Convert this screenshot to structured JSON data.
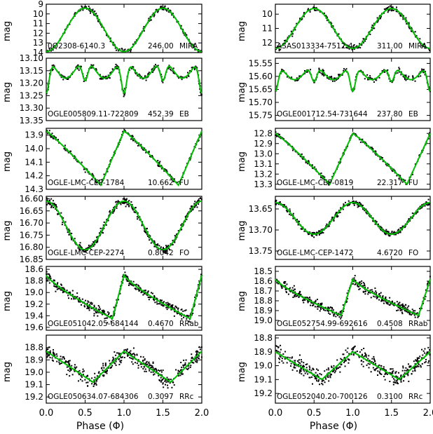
{
  "figure": {
    "xlabel": "Phase (Φ)",
    "ylabel": "mag",
    "x_ticks": [
      "0.0",
      "0.5",
      "1.0",
      "1.5",
      "2.0"
    ]
  },
  "chart_data": [
    {
      "type": "scatter",
      "column": "left",
      "row": 0,
      "title": "0Q2308-6140.3",
      "period": "246.00",
      "class": "MIRA",
      "ylim": [
        9.0,
        14.0
      ],
      "yticks": [
        9,
        10,
        11,
        12,
        13,
        14
      ],
      "ytick_labels": [
        "9",
        "10",
        "11",
        "12",
        "13",
        "14"
      ],
      "x": [
        0.0,
        0.5,
        1.0,
        1.5,
        2.0
      ],
      "y": [
        13.2,
        9.4,
        13.2,
        9.4,
        13.2
      ],
      "fit": {
        "min": 9.4,
        "max": 13.9,
        "shape": "mira",
        "phase0": 0.5
      },
      "scatter": 0.25,
      "series": [
        {
          "values": []
        }
      ]
    },
    {
      "type": "scatter",
      "column": "left",
      "row": 1,
      "title": "OGLE005809.11-722809",
      "period": "452.39",
      "class": "EB",
      "ylim": [
        13.1,
        13.35
      ],
      "yticks": [
        13.1,
        13.15,
        13.2,
        13.25,
        13.3,
        13.35
      ],
      "ytick_labels": [
        "13.10",
        "13.15",
        "13.20",
        "13.25",
        "13.30",
        "13.35"
      ],
      "x": [
        0.0,
        0.25,
        0.5,
        0.75,
        1.0
      ],
      "y": [
        13.3,
        13.12,
        13.24,
        13.12,
        13.31
      ],
      "fit": {
        "min": 13.11,
        "max": 13.31,
        "shape": "eb",
        "phase0": 0.0
      },
      "scatter": 0.012,
      "series": [
        {
          "values": []
        }
      ]
    },
    {
      "type": "scatter",
      "column": "left",
      "row": 2,
      "title": "OGLE-LMC-CEP-1784",
      "period": "10.662",
      "class": "FU",
      "ylim": [
        13.85,
        14.3
      ],
      "yticks": [
        13.9,
        14.0,
        14.1,
        14.2,
        14.3
      ],
      "ytick_labels": [
        "13.9",
        "14.0",
        "14.1",
        "14.2",
        "14.3"
      ],
      "x": [
        0.0,
        0.65,
        1.0
      ],
      "y": [
        13.88,
        14.25,
        13.88
      ],
      "fit": {
        "min": 13.87,
        "max": 14.27,
        "shape": "cep",
        "phase0": 0.0
      },
      "scatter": 0.018,
      "series": [
        {
          "values": []
        }
      ]
    },
    {
      "type": "scatter",
      "column": "left",
      "row": 3,
      "title": "OGLE-LMC-CEP-2274",
      "period": "0.8042",
      "class": "FO",
      "ylim": [
        16.59,
        16.85
      ],
      "yticks": [
        16.6,
        16.65,
        16.7,
        16.75,
        16.8,
        16.85
      ],
      "ytick_labels": [
        "16.60",
        "16.65",
        "16.70",
        "16.75",
        "16.80",
        "16.85"
      ],
      "x": [
        0.0,
        0.5,
        1.0
      ],
      "y": [
        16.63,
        16.8,
        16.63
      ],
      "fit": {
        "min": 16.61,
        "max": 16.81,
        "shape": "sine",
        "phase0": 0.0
      },
      "scatter": 0.015,
      "series": [
        {
          "values": []
        }
      ]
    },
    {
      "type": "scatter",
      "column": "left",
      "row": 4,
      "title": "OGLE051042.05-684144",
      "period": "0.4670",
      "class": "RRab",
      "ylim": [
        18.55,
        19.65
      ],
      "yticks": [
        18.6,
        18.8,
        19.0,
        19.2,
        19.4,
        19.6
      ],
      "ytick_labels": [
        "18.6",
        "18.8",
        "19.0",
        "19.2",
        "19.4",
        "19.6"
      ],
      "x": [
        0.0,
        0.85,
        1.0
      ],
      "y": [
        18.75,
        19.35,
        18.68
      ],
      "fit": {
        "min": 18.7,
        "max": 19.45,
        "shape": "rrab",
        "phase0": 0.0
      },
      "scatter": 0.08,
      "series": [
        {
          "values": []
        }
      ]
    },
    {
      "type": "scatter",
      "column": "left",
      "row": 5,
      "title": "OGLE050634.07-684306",
      "period": "0.3097",
      "class": "RRc",
      "ylim": [
        18.7,
        19.25
      ],
      "yticks": [
        18.8,
        18.9,
        19.0,
        19.1,
        19.2
      ],
      "ytick_labels": [
        "18.8",
        "18.9",
        "19.0",
        "19.1",
        "19.2"
      ],
      "x": [
        0.0,
        0.6,
        1.0
      ],
      "y": [
        18.82,
        19.08,
        18.85
      ],
      "fit": {
        "min": 18.83,
        "max": 19.08,
        "shape": "rrc",
        "phase0": 0.0
      },
      "scatter": 0.06,
      "series": [
        {
          "values": []
        }
      ]
    },
    {
      "type": "scatter",
      "column": "right",
      "row": 0,
      "title": "ASAS013334-7512.4",
      "period": "311.00",
      "class": "MIRA",
      "ylim": [
        9.3,
        12.7
      ],
      "yticks": [
        10,
        11,
        12
      ],
      "ytick_labels": [
        "10",
        "11",
        "12"
      ],
      "x": [
        0.0,
        0.5,
        1.0
      ],
      "y": [
        12.3,
        9.6,
        12.3
      ],
      "fit": {
        "min": 9.6,
        "max": 12.4,
        "shape": "mira",
        "phase0": 0.5
      },
      "scatter": 0.2,
      "series": [
        {
          "values": []
        }
      ]
    },
    {
      "type": "scatter",
      "column": "right",
      "row": 1,
      "title": "OGLE001712.54-731644",
      "period": "237.80",
      "class": "EB",
      "ylim": [
        15.53,
        15.77
      ],
      "yticks": [
        15.55,
        15.6,
        15.65,
        15.7,
        15.75
      ],
      "ytick_labels": [
        "15.55",
        "15.60",
        "15.65",
        "15.70",
        "15.75"
      ],
      "x": [
        0.0,
        0.25,
        0.5,
        0.75,
        1.0
      ],
      "y": [
        15.7,
        15.56,
        15.62,
        15.56,
        15.71
      ],
      "fit": {
        "min": 15.56,
        "max": 15.71,
        "shape": "eb",
        "phase0": 0.0
      },
      "scatter": 0.01,
      "series": [
        {
          "values": []
        }
      ]
    },
    {
      "type": "scatter",
      "column": "right",
      "row": 2,
      "title": "OGLE-LMC-CEP-0819",
      "period": "22.317",
      "class": "FU",
      "ylim": [
        12.75,
        13.35
      ],
      "yticks": [
        12.8,
        12.9,
        13.0,
        13.1,
        13.2,
        13.3
      ],
      "ytick_labels": [
        "12.8",
        "12.9",
        "13.0",
        "13.1",
        "13.2",
        "13.3"
      ],
      "x": [
        0.0,
        0.7,
        1.0
      ],
      "y": [
        12.8,
        13.3,
        12.8
      ],
      "fit": {
        "min": 12.8,
        "max": 13.3,
        "shape": "cep",
        "phase0": 0.0
      },
      "scatter": 0.02,
      "series": [
        {
          "values": []
        }
      ]
    },
    {
      "type": "scatter",
      "column": "right",
      "row": 3,
      "title": "OGLE-LMC-CEP-1472",
      "period": "4.6720",
      "class": "FO",
      "ylim": [
        13.62,
        13.77
      ],
      "yticks": [
        13.65,
        13.7,
        13.75
      ],
      "ytick_labels": [
        "13.65",
        "13.70",
        "13.75"
      ],
      "x": [
        0.0,
        0.5,
        1.0
      ],
      "y": [
        13.63,
        13.71,
        13.63
      ],
      "fit": {
        "min": 13.635,
        "max": 13.71,
        "shape": "sine",
        "phase0": 0.0
      },
      "scatter": 0.006,
      "series": [
        {
          "values": []
        }
      ]
    },
    {
      "type": "scatter",
      "column": "right",
      "row": 4,
      "title": "OGLE052754.99-692616",
      "period": "0.4508",
      "class": "RRab",
      "ylim": [
        18.45,
        19.1
      ],
      "yticks": [
        18.5,
        18.6,
        18.7,
        18.8,
        18.9,
        19.0
      ],
      "ytick_labels": [
        "18.5",
        "18.6",
        "18.7",
        "18.8",
        "18.9",
        "19.0"
      ],
      "x": [
        0.0,
        0.8,
        1.0
      ],
      "y": [
        18.62,
        18.95,
        18.6
      ],
      "fit": {
        "min": 18.58,
        "max": 18.95,
        "shape": "rrab",
        "phase0": 0.0
      },
      "scatter": 0.05,
      "series": [
        {
          "values": []
        }
      ]
    },
    {
      "type": "scatter",
      "column": "right",
      "row": 5,
      "title": "OGLE052040.20-700126",
      "period": "0.3100",
      "class": "RRc",
      "ylim": [
        18.78,
        19.27
      ],
      "yticks": [
        18.8,
        18.9,
        19.0,
        19.1,
        19.2
      ],
      "ytick_labels": [
        "18.8",
        "18.9",
        "19.0",
        "19.1",
        "19.2"
      ],
      "x": [
        0.0,
        0.5,
        1.0
      ],
      "y": [
        18.93,
        19.1,
        18.9
      ],
      "fit": {
        "min": 18.9,
        "max": 19.1,
        "shape": "rrc",
        "phase0": 0.0
      },
      "scatter": 0.06,
      "series": [
        {
          "values": []
        }
      ]
    }
  ],
  "style": {
    "fit_color": "#00c000",
    "point_color": "#000000"
  }
}
